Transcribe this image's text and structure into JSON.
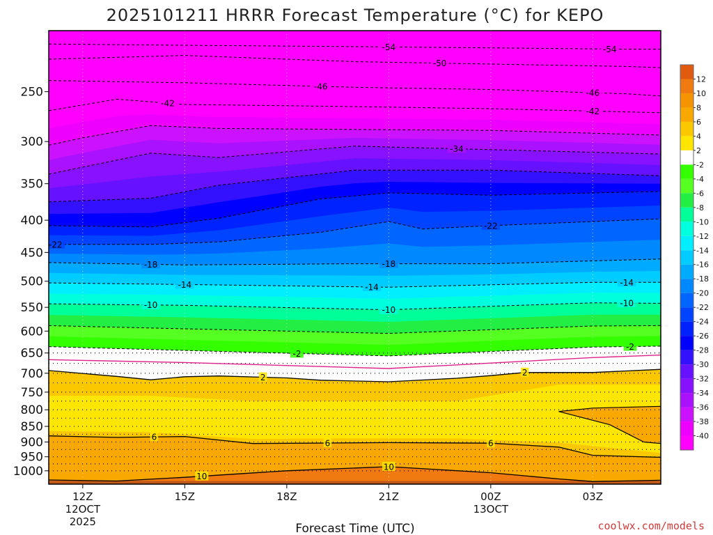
{
  "chart_data": {
    "type": "heatmap",
    "title": "2025101211 HRRR Forecast Temperature (°C) for KEPO",
    "xlabel": "Forecast Time (UTC)",
    "ylabel": "",
    "credit": "coolwx.com/models",
    "x_forecast_hours": [
      0,
      1,
      2,
      3,
      4,
      5,
      6,
      7,
      8,
      9,
      10,
      11,
      12,
      13,
      14,
      15,
      16,
      17,
      18
    ],
    "x_ticks": [
      {
        "hour": 0,
        "label": "12Z",
        "sub": [
          "12OCT",
          "2025"
        ]
      },
      {
        "hour": 3,
        "label": "15Z",
        "sub": []
      },
      {
        "hour": 6,
        "label": "18Z",
        "sub": []
      },
      {
        "hour": 9,
        "label": "21Z",
        "sub": []
      },
      {
        "hour": 12,
        "label": "00Z",
        "sub": [
          "13OCT"
        ]
      },
      {
        "hour": 15,
        "label": "03Z",
        "sub": []
      }
    ],
    "x_range_hours": [
      -1,
      17
    ],
    "y_axis": {
      "quantity": "pressure (hPa)",
      "range": [
        1050,
        200
      ],
      "ticks": [
        "250",
        "300",
        "350",
        "400",
        "450",
        "500",
        "550",
        "600",
        "650",
        "700",
        "750",
        "800",
        "850",
        "900",
        "950",
        "1000"
      ],
      "dotted_gridlines_hpa": [
        650,
        675,
        700,
        725,
        750,
        775,
        800,
        825,
        850,
        875,
        900,
        925,
        950,
        975,
        1000
      ]
    },
    "contour_levels_labeled": {
      "dashed": [
        "-54",
        "-50",
        "-46",
        "-42",
        "-34",
        "-22",
        "-18",
        "-14",
        "-10",
        "-2"
      ],
      "solid": [
        "2",
        "6",
        "10"
      ]
    },
    "contour_lines": [
      {
        "level": -54,
        "style": "dashed",
        "x_hours": [
          -1,
          3,
          8,
          12,
          16,
          17
        ],
        "p_hpa": [
          210,
          211,
          212,
          213,
          214,
          214
        ]
      },
      {
        "level": -50,
        "style": "dashed",
        "x_hours": [
          -1,
          3,
          8,
          12,
          16,
          17
        ],
        "p_hpa": [
          222,
          219,
          224,
          226,
          228,
          229
        ]
      },
      {
        "level": -46,
        "style": "dashed",
        "x_hours": [
          -1,
          3,
          8,
          12,
          16,
          17
        ],
        "p_hpa": [
          240,
          242,
          246,
          248,
          252,
          254
        ]
      },
      {
        "level": -42,
        "style": "dashed",
        "x_hours": [
          -1,
          1,
          3,
          8,
          12,
          17
        ],
        "p_hpa": [
          268,
          257,
          262,
          264,
          266,
          270
        ]
      },
      {
        "level": -38,
        "style": "dashed",
        "x_hours": [
          -1,
          0,
          2,
          4,
          8,
          12,
          17
        ],
        "p_hpa": [
          304,
          296,
          283,
          286,
          287,
          288,
          293
        ]
      },
      {
        "level": -34,
        "style": "dashed",
        "x_hours": [
          -1,
          2,
          4,
          8,
          12,
          17
        ],
        "p_hpa": [
          338,
          313,
          318,
          305,
          309,
          314
        ]
      },
      {
        "level": -30,
        "style": "dashed",
        "x_hours": [
          -1,
          2,
          4,
          8,
          12,
          17
        ],
        "p_hpa": [
          374,
          369,
          352,
          333,
          333,
          340
        ]
      },
      {
        "level": -26,
        "style": "dashed",
        "x_hours": [
          -1,
          2,
          4,
          7,
          9,
          12,
          17
        ],
        "p_hpa": [
          408,
          410,
          397,
          370,
          362,
          365,
          360
        ]
      },
      {
        "level": -22,
        "style": "dashed",
        "x_hours": [
          -1,
          2,
          4,
          7,
          9,
          10,
          12,
          17
        ],
        "p_hpa": [
          437,
          437,
          433,
          418,
          402,
          413,
          408,
          398
        ]
      },
      {
        "level": -18,
        "style": "dashed",
        "x_hours": [
          -1,
          3,
          8,
          12,
          17
        ],
        "p_hpa": [
          467,
          471,
          469,
          469,
          461
        ]
      },
      {
        "level": -14,
        "style": "dashed",
        "x_hours": [
          -1,
          3,
          9,
          15,
          17
        ],
        "p_hpa": [
          503,
          506,
          511,
          502,
          502
        ]
      },
      {
        "level": -10,
        "style": "dashed",
        "x_hours": [
          -1,
          3,
          9,
          15,
          17
        ],
        "p_hpa": [
          543,
          546,
          555,
          541,
          542
        ]
      },
      {
        "level": -6,
        "style": "dashed",
        "x_hours": [
          -1,
          3,
          9,
          15,
          17
        ],
        "p_hpa": [
          588,
          595,
          605,
          589,
          588
        ]
      },
      {
        "level": -2,
        "style": "dashed",
        "x_hours": [
          -1,
          3,
          9,
          15,
          17
        ],
        "p_hpa": [
          635,
          644,
          657,
          636,
          634
        ]
      },
      {
        "level": 0,
        "style": "magenta",
        "x_hours": [
          -1,
          3,
          9,
          15,
          17
        ],
        "p_hpa": [
          666,
          673,
          688,
          661,
          655
        ]
      },
      {
        "level": 2,
        "style": "solid",
        "x_hours": [
          -1,
          1,
          2,
          3,
          4,
          6,
          7,
          9,
          11,
          12,
          13,
          15,
          17
        ],
        "p_hpa": [
          693,
          708,
          717,
          709,
          707,
          712,
          718,
          722,
          713,
          706,
          698,
          698,
          690
        ]
      },
      {
        "level": 6,
        "style": "solid",
        "x_hours": [
          -1,
          1,
          3,
          5,
          9,
          12,
          14,
          15,
          17
        ],
        "p_hpa": [
          880,
          885,
          882,
          905,
          902,
          904,
          917,
          945,
          952
        ]
      },
      {
        "level": 10,
        "style": "solid",
        "x_hours": [
          -1,
          1,
          3,
          6,
          9,
          12,
          14,
          15,
          17
        ],
        "p_hpa": [
          1034,
          1038,
          1024,
          1000,
          985,
          1007,
          1030,
          1040,
          1035
        ]
      }
    ],
    "colorbar": {
      "labels": [
        "12",
        "10",
        "8",
        "6",
        "4",
        "2",
        "-2",
        "-4",
        "-6",
        "-8",
        "-10",
        "-12",
        "-14",
        "-16",
        "-18",
        "-20",
        "-22",
        "-24",
        "-26",
        "-28",
        "-30",
        "-32",
        "-34",
        "-36",
        "-38",
        "-40"
      ],
      "segments": [
        {
          "range": [
            14,
            12
          ],
          "color": "#e05a10"
        },
        {
          "range": [
            12,
            10
          ],
          "color": "#f07a10"
        },
        {
          "range": [
            10,
            8
          ],
          "color": "#f59400"
        },
        {
          "range": [
            8,
            6
          ],
          "color": "#f8a800"
        },
        {
          "range": [
            6,
            4
          ],
          "color": "#fbc800"
        },
        {
          "range": [
            4,
            2
          ],
          "color": "#ffe600"
        },
        {
          "range": [
            2,
            -2
          ],
          "color": "#ffffff"
        },
        {
          "range": [
            -2,
            -4
          ],
          "color": "#33ff00"
        },
        {
          "range": [
            -4,
            -6
          ],
          "color": "#55ff22"
        },
        {
          "range": [
            -6,
            -8
          ],
          "color": "#22ee44"
        },
        {
          "range": [
            -8,
            -10
          ],
          "color": "#00ff99"
        },
        {
          "range": [
            -10,
            -12
          ],
          "color": "#00ffdd"
        },
        {
          "range": [
            -12,
            -14
          ],
          "color": "#00eeff"
        },
        {
          "range": [
            -14,
            -16
          ],
          "color": "#00ccff"
        },
        {
          "range": [
            -16,
            -18
          ],
          "color": "#00aaff"
        },
        {
          "range": [
            -18,
            -20
          ],
          "color": "#0088ff"
        },
        {
          "range": [
            -20,
            -22
          ],
          "color": "#0066ff"
        },
        {
          "range": [
            -22,
            -24
          ],
          "color": "#0044ff"
        },
        {
          "range": [
            -24,
            -26
          ],
          "color": "#0022ff"
        },
        {
          "range": [
            -26,
            -28
          ],
          "color": "#0000ff"
        },
        {
          "range": [
            -28,
            -30
          ],
          "color": "#3311ff"
        },
        {
          "range": [
            -30,
            -32
          ],
          "color": "#6611ff"
        },
        {
          "range": [
            -32,
            -34
          ],
          "color": "#8811ff"
        },
        {
          "range": [
            -34,
            -36
          ],
          "color": "#aa11ff"
        },
        {
          "range": [
            -36,
            -38
          ],
          "color": "#cc11ff"
        },
        {
          "range": [
            -38,
            -40
          ],
          "color": "#ee00ff"
        },
        {
          "range": [
            -40,
            -42
          ],
          "color": "#ff00ff"
        }
      ]
    }
  }
}
